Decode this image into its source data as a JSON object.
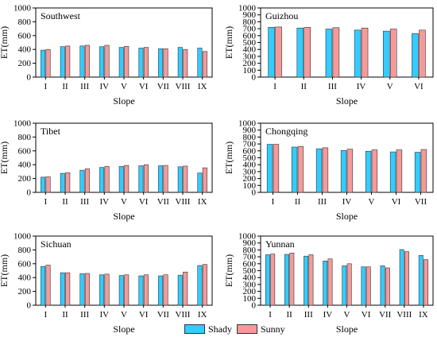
{
  "colors": {
    "shady": "#33ccff",
    "sunny": "#f59a9a"
  },
  "legend": {
    "shady_label": "Shady",
    "sunny_label": "Sunny"
  },
  "chart_data": [
    {
      "type": "bar",
      "title": "Southwest",
      "xlabel": "Slope",
      "ylabel": "ET(mm)",
      "ylim": [
        0,
        1000
      ],
      "yticks": [
        0,
        200,
        400,
        600,
        800,
        1000
      ],
      "categories": [
        "I",
        "II",
        "III",
        "IV",
        "V",
        "VI",
        "VII",
        "VIII",
        "IX"
      ],
      "series": [
        {
          "name": "Shady",
          "values": [
            390,
            440,
            450,
            440,
            430,
            420,
            410,
            430,
            420
          ]
        },
        {
          "name": "Sunny",
          "values": [
            400,
            450,
            460,
            460,
            445,
            430,
            410,
            400,
            370
          ]
        }
      ]
    },
    {
      "type": "bar",
      "title": "Guizhou",
      "xlabel": "Slope",
      "ylabel": "ET(mm)",
      "ylim": [
        0,
        1000
      ],
      "yticks": [
        0,
        100,
        200,
        300,
        400,
        500,
        600,
        700,
        800,
        900,
        1000
      ],
      "categories": [
        "I",
        "II",
        "III",
        "IV",
        "V",
        "VI"
      ],
      "series": [
        {
          "name": "Shady",
          "values": [
            720,
            710,
            695,
            680,
            665,
            630
          ]
        },
        {
          "name": "Sunny",
          "values": [
            725,
            720,
            715,
            710,
            695,
            680
          ]
        }
      ]
    },
    {
      "type": "bar",
      "title": "Tibet",
      "xlabel": "Slope",
      "ylabel": "ET(mm)",
      "ylim": [
        0,
        1000
      ],
      "yticks": [
        0,
        200,
        400,
        600,
        800,
        1000
      ],
      "categories": [
        "I",
        "II",
        "III",
        "IV",
        "V",
        "VI",
        "VII",
        "VIII",
        "IX"
      ],
      "series": [
        {
          "name": "Shady",
          "values": [
            220,
            275,
            320,
            360,
            375,
            385,
            385,
            370,
            280
          ]
        },
        {
          "name": "Sunny",
          "values": [
            225,
            285,
            340,
            375,
            390,
            400,
            390,
            380,
            355
          ]
        }
      ]
    },
    {
      "type": "bar",
      "title": "Chongqing",
      "xlabel": "Slope",
      "ylabel": "ET(mm)",
      "ylim": [
        0,
        1000
      ],
      "yticks": [
        0,
        100,
        200,
        300,
        400,
        500,
        600,
        700,
        800,
        900,
        1000
      ],
      "categories": [
        "I",
        "II",
        "III",
        "IV",
        "V",
        "VI",
        "VII"
      ],
      "series": [
        {
          "name": "Shady",
          "values": [
            695,
            655,
            630,
            605,
            595,
            585,
            580
          ]
        },
        {
          "name": "Sunny",
          "values": [
            695,
            665,
            645,
            625,
            615,
            615,
            620
          ]
        }
      ]
    },
    {
      "type": "bar",
      "title": "Sichuan",
      "xlabel": "Slope",
      "ylabel": "ET(mm)",
      "ylim": [
        0,
        1000
      ],
      "yticks": [
        0,
        200,
        400,
        600,
        800,
        1000
      ],
      "categories": [
        "I",
        "II",
        "III",
        "IV",
        "V",
        "VI",
        "VII",
        "VIII",
        "IX"
      ],
      "series": [
        {
          "name": "Shady",
          "values": [
            560,
            470,
            455,
            440,
            430,
            425,
            425,
            435,
            575
          ]
        },
        {
          "name": "Sunny",
          "values": [
            580,
            470,
            460,
            450,
            440,
            440,
            440,
            480,
            590
          ]
        }
      ]
    },
    {
      "type": "bar",
      "title": "Yunnan",
      "xlabel": "Slope",
      "ylabel": "ET(mm)",
      "ylim": [
        0,
        1000
      ],
      "yticks": [
        0,
        100,
        200,
        300,
        400,
        500,
        600,
        700,
        800,
        900,
        1000
      ],
      "categories": [
        "I",
        "II",
        "III",
        "IV",
        "V",
        "VI",
        "VII",
        "VIII",
        "IX"
      ],
      "series": [
        {
          "name": "Shady",
          "values": [
            730,
            735,
            710,
            640,
            570,
            555,
            570,
            805,
            720
          ]
        },
        {
          "name": "Sunny",
          "values": [
            740,
            755,
            730,
            670,
            600,
            555,
            540,
            775,
            660
          ]
        }
      ]
    }
  ]
}
